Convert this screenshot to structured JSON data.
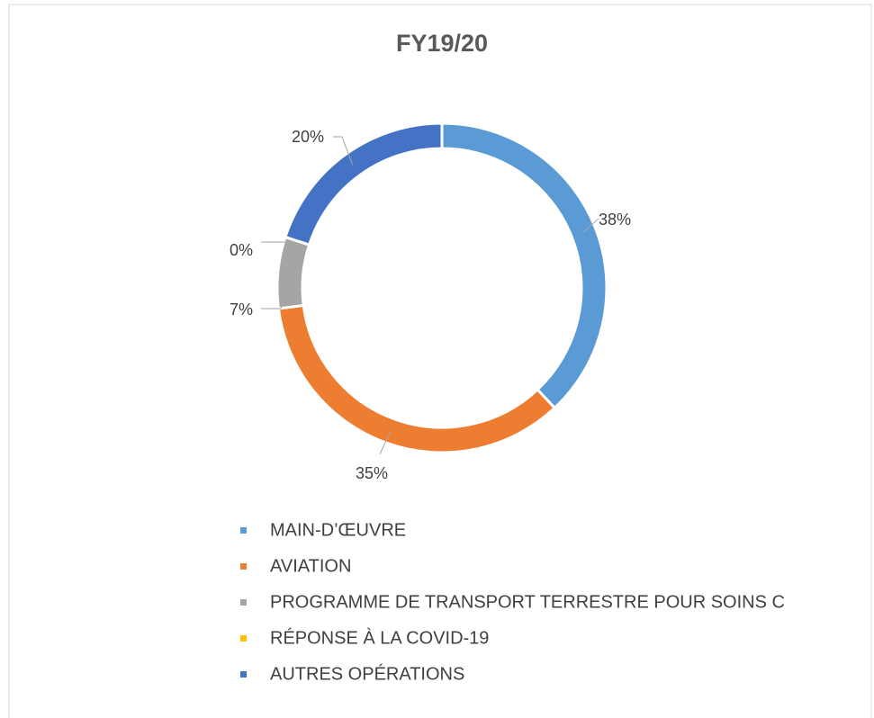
{
  "chart_data": {
    "type": "doughnut",
    "title": "FY19/20",
    "categories": [
      "MAIN-D’ŒUVRE",
      "AVIATION",
      "PROGRAMME DE TRANSPORT TERRESTRE POUR SOINS C",
      "RÉPONSE À LA COVID-19",
      "AUTRES OPÉRATIONS"
    ],
    "values": [
      38,
      35,
      7,
      0,
      20
    ],
    "value_labels": [
      "38%",
      "35%",
      "7%",
      "0%",
      "20%"
    ],
    "colors": [
      "#5b9bd5",
      "#ed7d31",
      "#a5a5a5",
      "#ffc000",
      "#4472c4"
    ],
    "legend": "bottom"
  }
}
